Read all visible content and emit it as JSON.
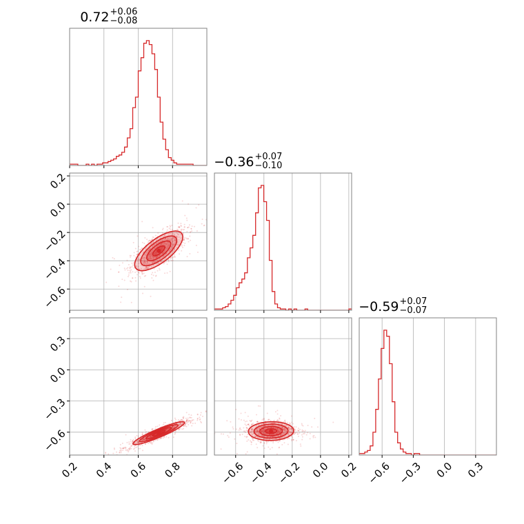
{
  "chart_data": {
    "type": "corner",
    "color": "#d62728",
    "grid": true,
    "parameters": [
      {
        "range": [
          0.2,
          1.0
        ],
        "ticks": [
          0.2,
          0.4,
          0.6,
          0.8
        ],
        "tick_labels": [
          "0.2",
          "0.4",
          "0.6",
          "0.8"
        ],
        "title": {
          "median": "0.72",
          "plus": "+0.06",
          "minus": "−0.08"
        },
        "histogram": {
          "edges_start": 0.2,
          "bin_width": 0.016,
          "counts": [
            1,
            1,
            1,
            0,
            0,
            0,
            1,
            0,
            1,
            0,
            1,
            1,
            2,
            2,
            3,
            4,
            5,
            7,
            8,
            10,
            14,
            21,
            28,
            44,
            52,
            72,
            82,
            93,
            95,
            92,
            85,
            73,
            52,
            33,
            20,
            12,
            6,
            4,
            2,
            1,
            1,
            1,
            1,
            1,
            1,
            0,
            0,
            0,
            0,
            0
          ]
        }
      },
      {
        "range": [
          -0.75,
          0.22
        ],
        "ticks": [
          -0.6,
          -0.4,
          -0.2,
          0.0,
          0.2
        ],
        "tick_labels": [
          "−0.6",
          "−0.4",
          "−0.2",
          "0.0",
          "0.2"
        ],
        "title": {
          "median": "−0.36",
          "plus": "+0.07",
          "minus": "−0.10"
        },
        "histogram": {
          "edges_start": -0.75,
          "bin_width": 0.0194,
          "counts": [
            1,
            1,
            1,
            2,
            3,
            5,
            8,
            12,
            18,
            22,
            25,
            30,
            42,
            50,
            60,
            78,
            98,
            100,
            87,
            72,
            40,
            15,
            5,
            2,
            1,
            1,
            0,
            1,
            0,
            1,
            0,
            0,
            0,
            1,
            0,
            0,
            0,
            0,
            0,
            0,
            0,
            0,
            0,
            0,
            0,
            0,
            0,
            0,
            0,
            1
          ]
        }
      },
      {
        "range": [
          -0.82,
          0.5
        ],
        "ticks": [
          -0.6,
          -0.3,
          0.0,
          0.3
        ],
        "tick_labels": [
          "−0.6",
          "−0.3",
          "0.0",
          "0.3"
        ],
        "title": {
          "median": "−0.59",
          "plus": "+0.07",
          "minus": "−0.07"
        },
        "histogram": {
          "edges_start": -0.82,
          "bin_width": 0.0264,
          "counts": [
            1,
            1,
            2,
            3,
            6,
            15,
            30,
            50,
            70,
            82,
            78,
            60,
            35,
            15,
            8,
            4,
            2,
            1,
            1,
            0,
            1,
            1,
            0,
            0,
            0,
            0,
            0,
            0,
            0,
            0,
            0,
            0,
            0,
            0,
            0,
            0,
            0,
            0,
            0,
            0,
            0,
            0,
            0,
            0,
            0,
            0,
            0,
            0,
            0,
            0
          ]
        }
      }
    ],
    "pairs": [
      {
        "x_param": 0,
        "y_param": 1,
        "center": [
          0.72,
          -0.33
        ],
        "sigma": [
          0.07,
          0.07
        ],
        "rho": 0.7
      },
      {
        "x_param": 0,
        "y_param": 2,
        "center": [
          0.72,
          -0.61
        ],
        "sigma": [
          0.075,
          0.055
        ],
        "rho": 0.92
      },
      {
        "x_param": 1,
        "y_param": 2,
        "center": [
          -0.35,
          -0.59
        ],
        "sigma": [
          0.08,
          0.045
        ],
        "rho": 0.05
      }
    ]
  }
}
